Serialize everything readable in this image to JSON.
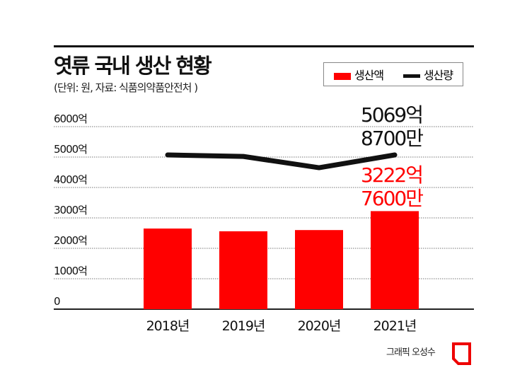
{
  "title": "엿류 국내 생산 현황",
  "subtitle": "(단위: 원, 자료: 식품의약품안전처 )",
  "footer": "그래픽 오성수",
  "chart_data": {
    "type": "bar",
    "categories": [
      "2018년",
      "2019년",
      "2020년",
      "2021년"
    ],
    "yticks": [
      "0",
      "1000억",
      "2000억",
      "3000억",
      "4000억",
      "5000억",
      "6000억"
    ],
    "ylim": [
      0,
      6000
    ],
    "grid": true,
    "legend_position": "top-right",
    "series": [
      {
        "name": "생산액",
        "type": "bar",
        "color": "#ff0000",
        "values": [
          2650,
          2560,
          2600,
          3222.76
        ]
      },
      {
        "name": "생산량",
        "type": "line",
        "color": "#111111",
        "values": [
          5070,
          5020,
          4650,
          5069.87
        ]
      }
    ],
    "annotations": [
      {
        "series": "생산량",
        "lines": [
          "5069억",
          "8700만"
        ],
        "color": "#111111"
      },
      {
        "series": "생산액",
        "lines": [
          "3222억",
          "7600만"
        ],
        "color": "#ff0000"
      }
    ]
  }
}
